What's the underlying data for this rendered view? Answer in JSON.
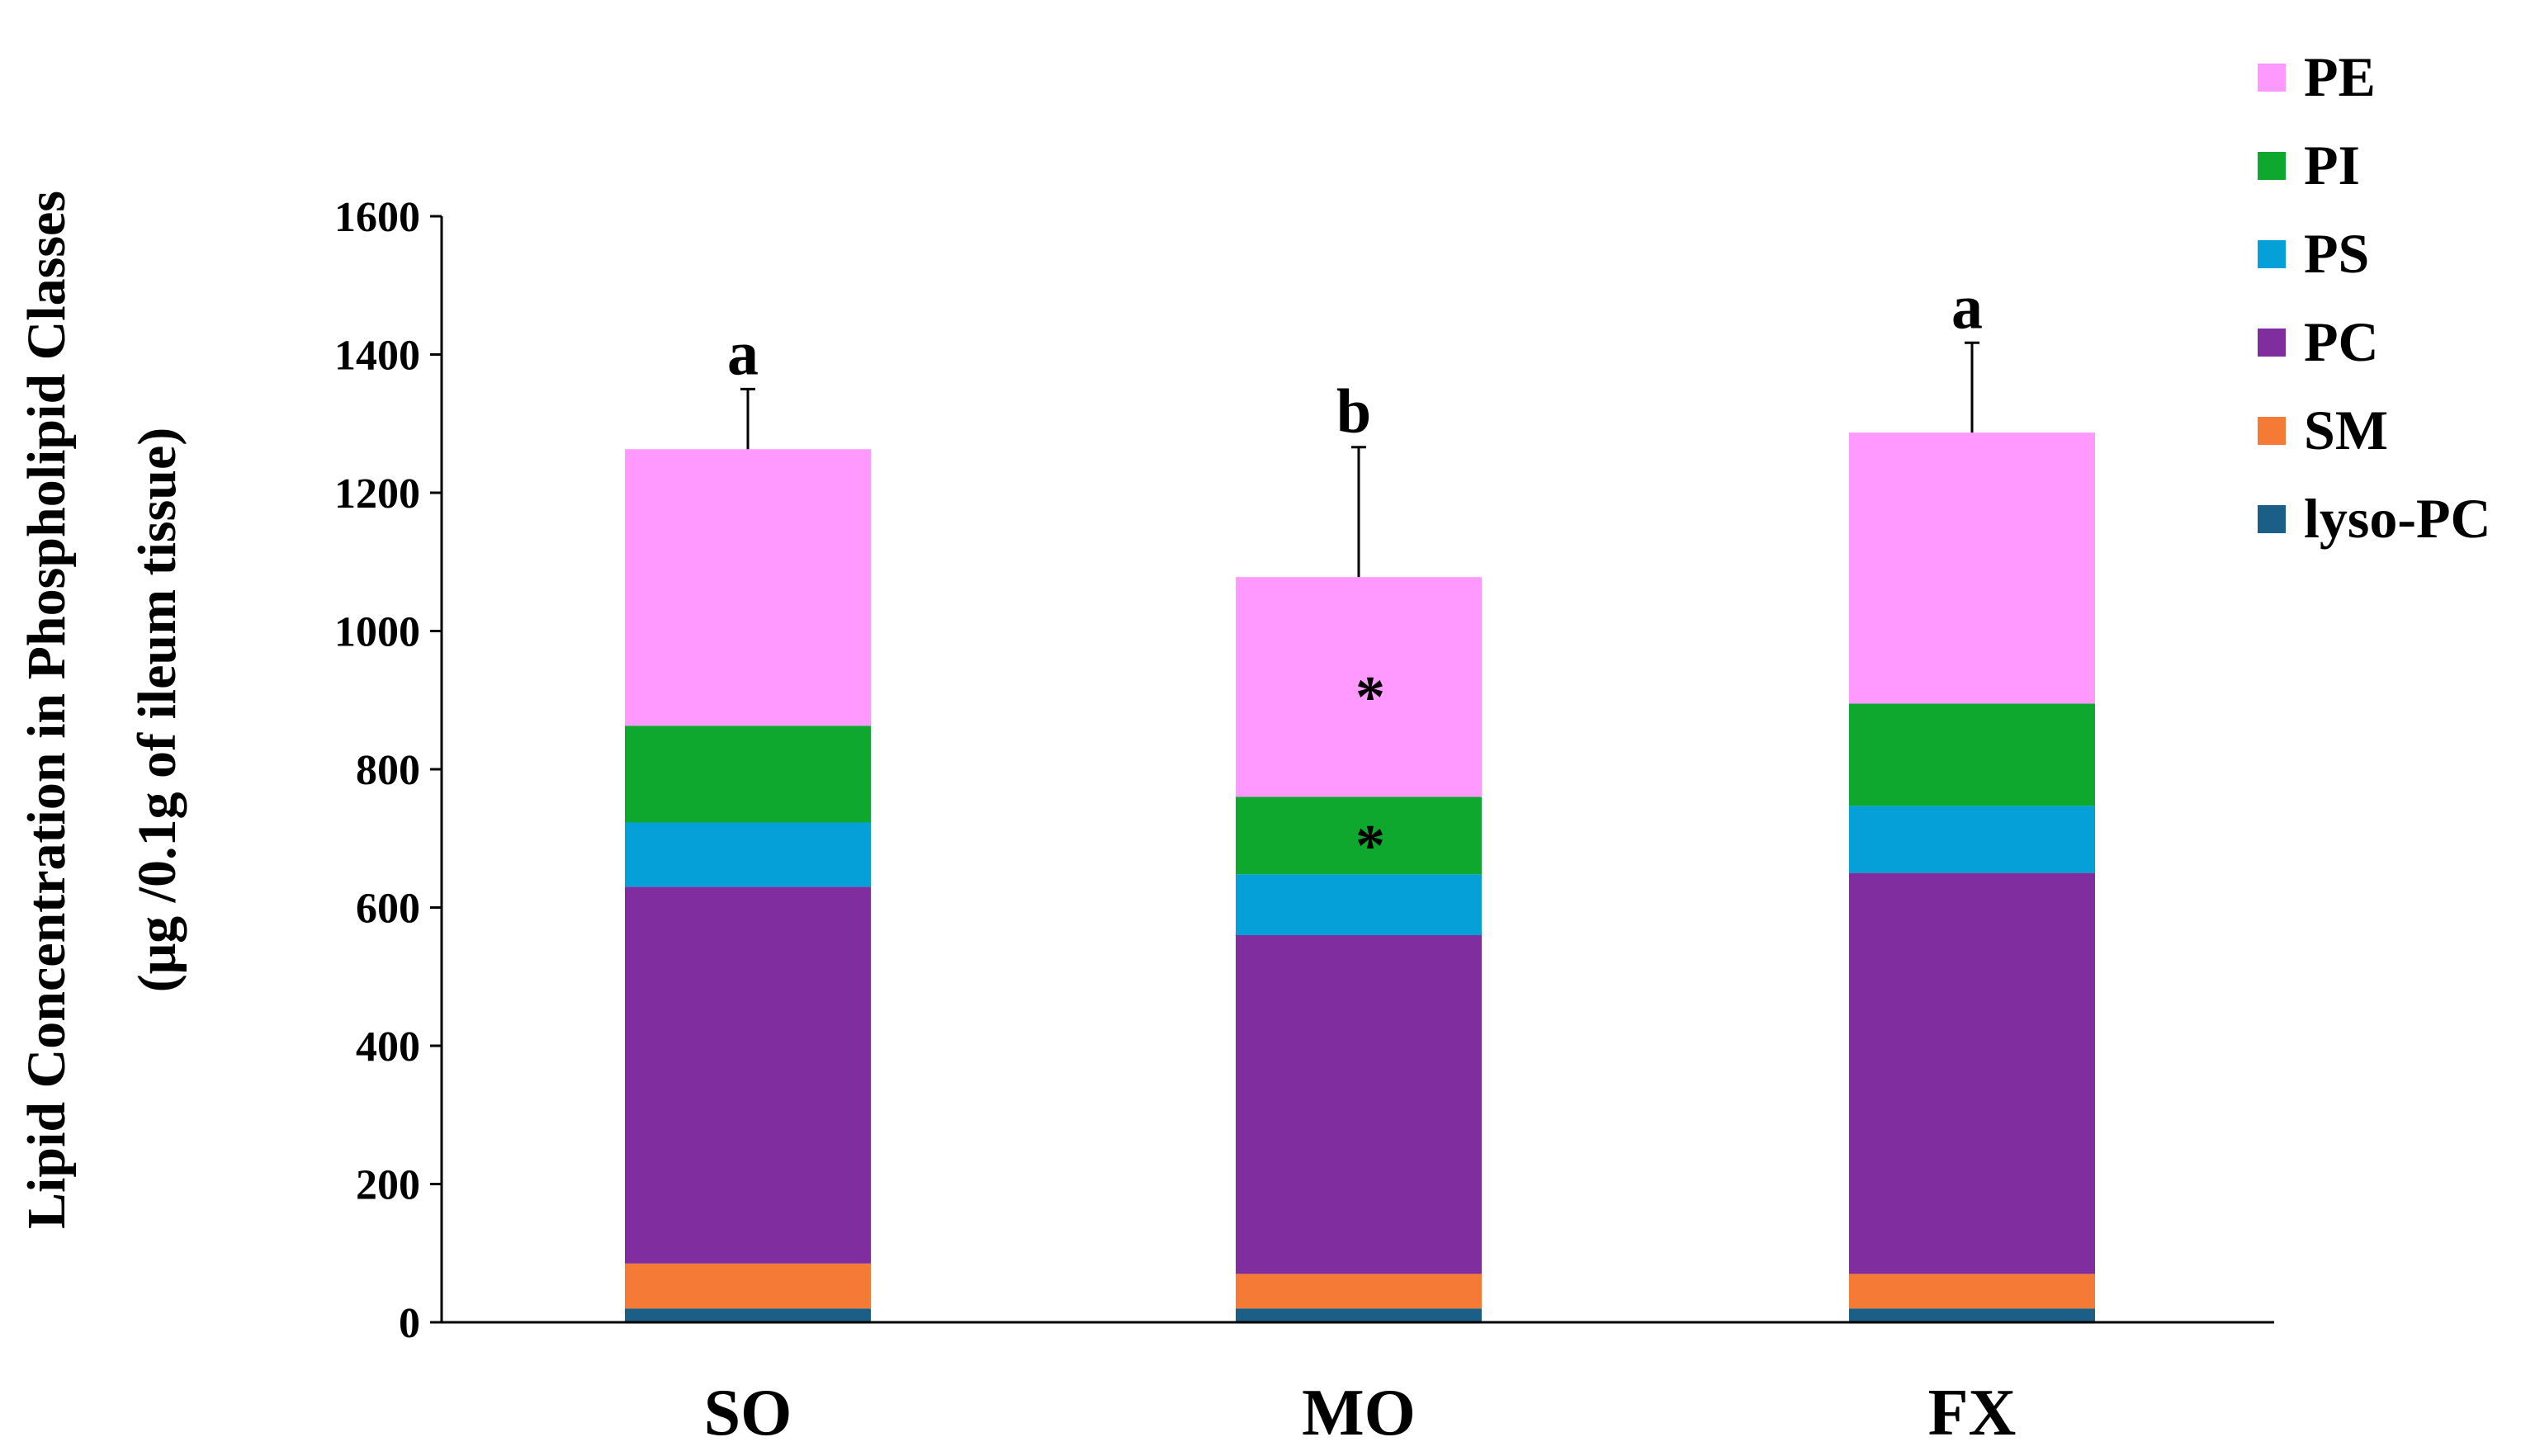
{
  "chart_data": {
    "type": "bar",
    "stacked": true,
    "title": "",
    "xlabel": "",
    "ylabel_line1": "Lipid Concentration in Phospholipid Classes",
    "ylabel_line2": "(μg /0.1g of ileum tissue)",
    "ylim": [
      0,
      1600
    ],
    "yticks": [
      0,
      200,
      400,
      600,
      800,
      1000,
      1200,
      1400,
      1600
    ],
    "ytick_labels": [
      "0",
      "200",
      "400",
      "600",
      "800",
      "1000",
      "1200",
      "1400",
      "1600"
    ],
    "categories": [
      "SO",
      "MO",
      "FX"
    ],
    "series": [
      {
        "name": "lyso-PC",
        "color": "#1B5F86",
        "values": [
          20,
          20,
          20
        ]
      },
      {
        "name": "SM",
        "color": "#F57A36",
        "values": [
          65,
          50,
          50
        ]
      },
      {
        "name": "PC",
        "color": "#7F2D9F",
        "values": [
          545,
          490,
          580
        ]
      },
      {
        "name": "PS",
        "color": "#06A0D8",
        "values": [
          93,
          88,
          97
        ]
      },
      {
        "name": "PI",
        "color": "#0EA82F",
        "values": [
          140,
          112,
          148
        ]
      },
      {
        "name": "PE",
        "color": "#FF99FF",
        "values": [
          400,
          318,
          392
        ]
      }
    ],
    "legend_order": [
      "PE",
      "PI",
      "PS",
      "PC",
      "SM",
      "lyso-PC"
    ],
    "legend_position": "top-right",
    "error_bars_upper": [
      87,
      188,
      130
    ],
    "significance_letters": [
      "a",
      "b",
      "a"
    ],
    "annotations": [
      {
        "category": "MO",
        "series": "PE",
        "text": "*"
      },
      {
        "category": "MO",
        "series": "PI",
        "text": "*"
      }
    ]
  }
}
